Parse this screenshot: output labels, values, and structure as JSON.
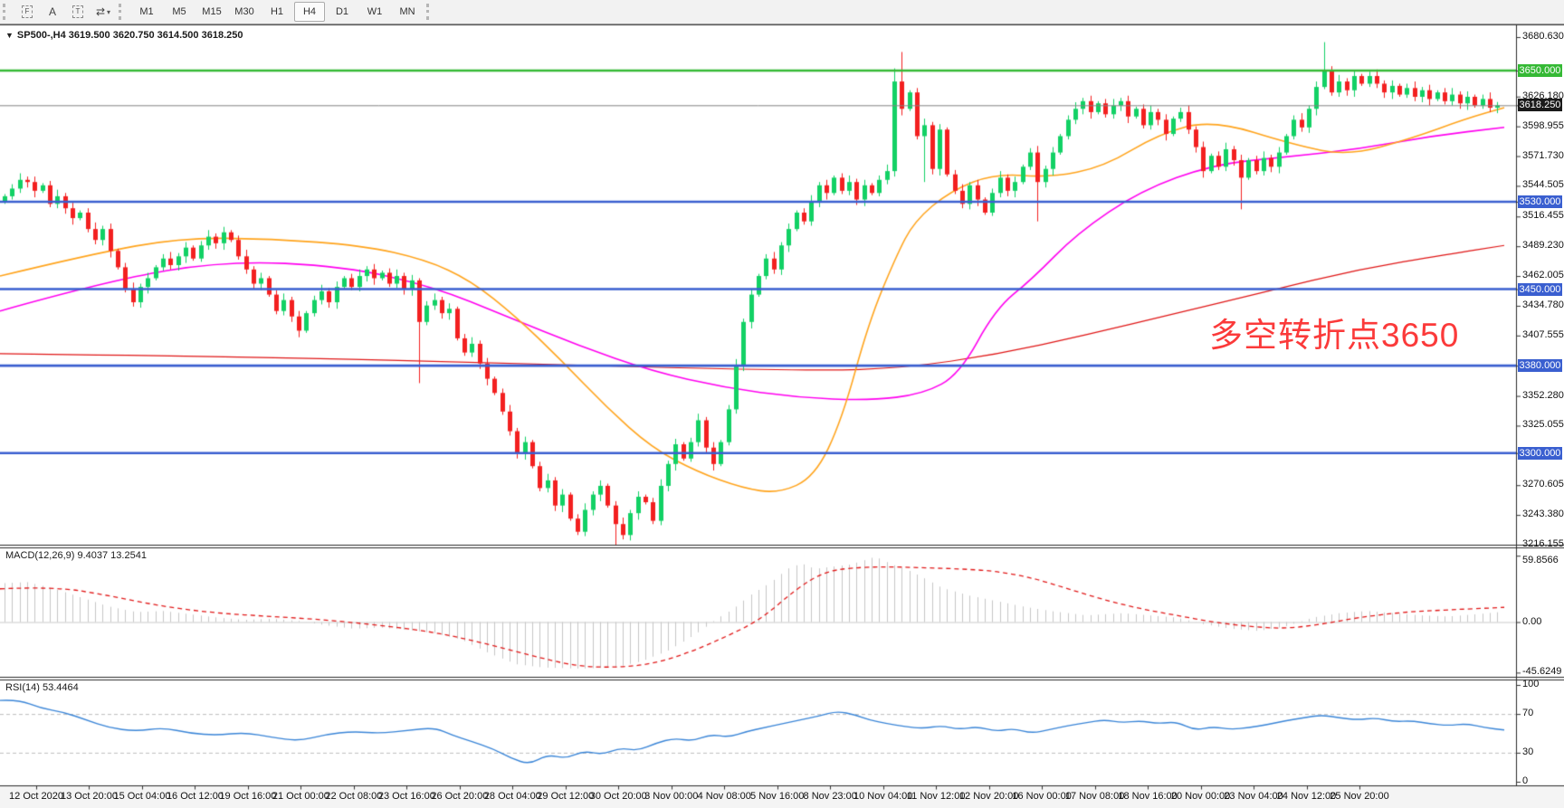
{
  "toolbar": {
    "icons": [
      {
        "name": "selection-box-f-icon",
        "glyph": "F"
      },
      {
        "name": "text-label-icon",
        "glyph": "A"
      },
      {
        "name": "text-box-icon",
        "glyph": "T"
      },
      {
        "name": "arrows-dropdown-icon",
        "glyph": "⇄",
        "caret": "▾"
      }
    ],
    "timeframes": [
      "M1",
      "M5",
      "M15",
      "M30",
      "H1",
      "H4",
      "D1",
      "W1",
      "MN"
    ],
    "active_timeframe": "H4"
  },
  "chart_header": {
    "collapse_icon": "▼",
    "title": "SP500-,H4  3619.500 3620.750 3614.500 3618.250"
  },
  "annotation": {
    "text": "多空转折点3650",
    "color": "#fb3a3a"
  },
  "price_axis": {
    "ticks": [
      "3680.630",
      "3626.180",
      "3598.955",
      "3571.730",
      "3544.505",
      "3516.455",
      "3489.230",
      "3462.005",
      "3434.780",
      "3407.555",
      "3352.280",
      "3325.055",
      "3270.605",
      "3243.380",
      "3216.155"
    ],
    "tick_values": [
      3680.63,
      3626.18,
      3598.955,
      3571.73,
      3544.505,
      3516.455,
      3489.23,
      3462.005,
      3434.78,
      3407.555,
      3352.28,
      3325.055,
      3270.605,
      3243.38,
      3216.155
    ],
    "tags": [
      {
        "text": "3650.000",
        "price": 3650.0,
        "bg": "#35b935"
      },
      {
        "text": "3618.250",
        "price": 3618.25,
        "bg": "#1a1a1a"
      },
      {
        "text": "3530.000",
        "price": 3530.0,
        "bg": "#3a5fd0"
      },
      {
        "text": "3450.000",
        "price": 3450.0,
        "bg": "#3a5fd0"
      },
      {
        "text": "3380.000",
        "price": 3380.0,
        "bg": "#3a5fd0"
      },
      {
        "text": "3300.000",
        "price": 3300.0,
        "bg": "#3a5fd0"
      }
    ]
  },
  "time_axis": {
    "labels": [
      "12 Oct 2020",
      "13 Oct 20:00",
      "15 Oct 04:00",
      "16 Oct 12:00",
      "19 Oct 16:00",
      "21 Oct 00:00",
      "22 Oct 08:00",
      "23 Oct 16:00",
      "26 Oct 20:00",
      "28 Oct 04:00",
      "29 Oct 12:00",
      "30 Oct 20:00",
      "3 Nov 00:00",
      "4 Nov 08:00",
      "5 Nov 16:00",
      "8 Nov 23:00",
      "10 Nov 04:00",
      "11 Nov 12:00",
      "12 Nov 20:00",
      "16 Nov 00:00",
      "17 Nov 08:00",
      "18 Nov 16:00",
      "20 Nov 00:00",
      "23 Nov 04:00",
      "24 Nov 12:00",
      "25 Nov 20:00"
    ]
  },
  "indicators": {
    "macd": {
      "label": "MACD(12,26,9) 9.4037 13.2541",
      "axis": [
        {
          "text": "59.8566",
          "v": 59.8566
        },
        {
          "text": "0.00",
          "v": 0
        },
        {
          "text": "-45.6249",
          "v": -45.6249
        }
      ]
    },
    "rsi": {
      "label": "RSI(14) 53.4464",
      "axis": [
        {
          "text": "100",
          "v": 100
        },
        {
          "text": "70",
          "v": 70
        },
        {
          "text": "30",
          "v": 30
        },
        {
          "text": "0",
          "v": 0
        }
      ]
    }
  },
  "chart_data": {
    "type": "candlestick",
    "symbol": "SP500-",
    "timeframe": "H4",
    "ohlc_header": {
      "open": 3619.5,
      "high": 3620.75,
      "low": 3614.5,
      "close": 3618.25
    },
    "h_lines": [
      {
        "price": 3650,
        "color": "#35b935",
        "width": 2.6
      },
      {
        "price": 3530,
        "color": "#3a5fd0",
        "width": 2.6
      },
      {
        "price": 3450,
        "color": "#3a5fd0",
        "width": 2.6
      },
      {
        "price": 3380,
        "color": "#3a5fd0",
        "width": 2.6
      },
      {
        "price": 3300,
        "color": "#3a5fd0",
        "width": 2.6
      }
    ],
    "current_price": 3618.25,
    "candles": {
      "first_open": 3530,
      "up_color": "#12d165",
      "down_color": "#f32020",
      "closes": [
        3535,
        3542,
        3550,
        3548,
        3540,
        3545,
        3528,
        3535,
        3524,
        3515,
        3520,
        3505,
        3495,
        3505,
        3485,
        3470,
        3450,
        3438,
        3452,
        3460,
        3470,
        3478,
        3472,
        3480,
        3488,
        3478,
        3490,
        3498,
        3492,
        3502,
        3495,
        3480,
        3468,
        3455,
        3460,
        3445,
        3430,
        3440,
        3425,
        3412,
        3428,
        3440,
        3448,
        3438,
        3452,
        3460,
        3452,
        3462,
        3468,
        3460,
        3465,
        3455,
        3462,
        3450,
        3458,
        3420,
        3435,
        3440,
        3428,
        3432,
        3405,
        3392,
        3400,
        3382,
        3368,
        3355,
        3338,
        3320,
        3300,
        3310,
        3288,
        3268,
        3275,
        3252,
        3262,
        3240,
        3228,
        3248,
        3262,
        3270,
        3252,
        3235,
        3225,
        3245,
        3260,
        3255,
        3238,
        3270,
        3290,
        3308,
        3295,
        3310,
        3330,
        3305,
        3290,
        3310,
        3340,
        3380,
        3420,
        3445,
        3462,
        3478,
        3468,
        3490,
        3505,
        3520,
        3512,
        3530,
        3545,
        3538,
        3552,
        3540,
        3548,
        3532,
        3545,
        3538,
        3550,
        3558,
        3640,
        3615,
        3630,
        3590,
        3600,
        3560,
        3596,
        3555,
        3540,
        3528,
        3545,
        3532,
        3520,
        3538,
        3552,
        3540,
        3548,
        3562,
        3575,
        3548,
        3560,
        3575,
        3590,
        3605,
        3615,
        3622,
        3612,
        3620,
        3610,
        3618,
        3622,
        3608,
        3615,
        3600,
        3612,
        3605,
        3592,
        3606,
        3612,
        3596,
        3580,
        3558,
        3572,
        3562,
        3578,
        3568,
        3552,
        3568,
        3558,
        3570,
        3562,
        3575,
        3590,
        3605,
        3598,
        3615,
        3635,
        3650,
        3630,
        3640,
        3632,
        3645,
        3638,
        3645,
        3638,
        3630,
        3636,
        3628,
        3634,
        3626,
        3632,
        3624,
        3630,
        3622,
        3628,
        3620,
        3626,
        3618,
        3624,
        3616,
        3618.25
      ],
      "wick_overrides": {
        "55": {
          "low": 3364
        },
        "81": {
          "low": 3216
        },
        "118": {
          "high": 3652
        },
        "119": {
          "high": 3667
        },
        "122": {
          "low": 3548
        },
        "137": {
          "low": 3512
        },
        "164": {
          "low": 3523
        },
        "175": {
          "high": 3676
        }
      }
    },
    "ma_fast_orange": {
      "color": "#ffa41c",
      "points": [
        [
          0,
          3462
        ],
        [
          100,
          3482
        ],
        [
          200,
          3497
        ],
        [
          300,
          3496
        ],
        [
          400,
          3490
        ],
        [
          470,
          3477
        ],
        [
          520,
          3458
        ],
        [
          570,
          3425
        ],
        [
          620,
          3385
        ],
        [
          670,
          3342
        ],
        [
          720,
          3305
        ],
        [
          770,
          3283
        ],
        [
          820,
          3268
        ],
        [
          860,
          3263
        ],
        [
          900,
          3278
        ],
        [
          930,
          3330
        ],
        [
          960,
          3420
        ],
        [
          990,
          3480
        ],
        [
          1010,
          3512
        ],
        [
          1050,
          3540
        ],
        [
          1100,
          3556
        ],
        [
          1160,
          3552
        ],
        [
          1220,
          3562
        ],
        [
          1280,
          3592
        ],
        [
          1340,
          3605
        ],
        [
          1430,
          3582
        ],
        [
          1490,
          3572
        ],
        [
          1560,
          3588
        ],
        [
          1620,
          3606
        ],
        [
          1662,
          3616
        ]
      ]
    },
    "ma_slow_magenta": {
      "color": "#ff00f0",
      "points": [
        [
          0,
          3430
        ],
        [
          120,
          3458
        ],
        [
          250,
          3476
        ],
        [
          380,
          3471
        ],
        [
          480,
          3452
        ],
        [
          560,
          3425
        ],
        [
          640,
          3398
        ],
        [
          720,
          3375
        ],
        [
          800,
          3360
        ],
        [
          880,
          3351
        ],
        [
          960,
          3348
        ],
        [
          1020,
          3354
        ],
        [
          1060,
          3372
        ],
        [
          1100,
          3432
        ],
        [
          1140,
          3459
        ],
        [
          1190,
          3501
        ],
        [
          1260,
          3540
        ],
        [
          1340,
          3564
        ],
        [
          1420,
          3571
        ],
        [
          1500,
          3578
        ],
        [
          1580,
          3590
        ],
        [
          1662,
          3598
        ]
      ]
    },
    "ma_long_red": {
      "color": "#e01717",
      "points": [
        [
          0,
          3391
        ],
        [
          300,
          3388
        ],
        [
          600,
          3381
        ],
        [
          900,
          3375
        ],
        [
          1000,
          3378
        ],
        [
          1100,
          3390
        ],
        [
          1200,
          3408
        ],
        [
          1300,
          3428
        ],
        [
          1400,
          3448
        ],
        [
          1500,
          3468
        ],
        [
          1600,
          3482
        ],
        [
          1662,
          3490
        ]
      ]
    },
    "macd": {
      "hist_color": "#c6c6c6",
      "signal_color": "#e21b1b",
      "range": [
        59.8566,
        -45.6249
      ],
      "last_macd": 9.4037,
      "last_signal": 13.2541,
      "hist": [
        [
          0,
          35
        ],
        [
          30,
          36
        ],
        [
          60,
          30
        ],
        [
          90,
          22
        ],
        [
          120,
          14
        ],
        [
          150,
          9
        ],
        [
          180,
          10
        ],
        [
          210,
          7
        ],
        [
          240,
          4
        ],
        [
          270,
          2
        ],
        [
          300,
          3
        ],
        [
          330,
          1
        ],
        [
          360,
          -3
        ],
        [
          390,
          -6
        ],
        [
          420,
          -5
        ],
        [
          450,
          -7
        ],
        [
          480,
          -10
        ],
        [
          510,
          -16
        ],
        [
          540,
          -28
        ],
        [
          570,
          -38
        ],
        [
          600,
          -41
        ],
        [
          640,
          -42
        ],
        [
          680,
          -41
        ],
        [
          710,
          -35
        ],
        [
          740,
          -25
        ],
        [
          770,
          -10
        ],
        [
          790,
          2
        ],
        [
          810,
          12
        ],
        [
          830,
          25
        ],
        [
          850,
          35
        ],
        [
          870,
          48
        ],
        [
          885,
          53
        ],
        [
          900,
          48
        ],
        [
          920,
          50
        ],
        [
          940,
          52
        ],
        [
          967,
          59
        ],
        [
          985,
          52
        ],
        [
          1000,
          48
        ],
        [
          1020,
          40
        ],
        [
          1040,
          31
        ],
        [
          1070,
          24
        ],
        [
          1100,
          19
        ],
        [
          1130,
          14
        ],
        [
          1160,
          10
        ],
        [
          1200,
          6
        ],
        [
          1240,
          8
        ],
        [
          1270,
          6
        ],
        [
          1300,
          4
        ],
        [
          1330,
          -2
        ],
        [
          1360,
          -6
        ],
        [
          1390,
          -8
        ],
        [
          1420,
          -4
        ],
        [
          1450,
          4
        ],
        [
          1480,
          8
        ],
        [
          1510,
          10
        ],
        [
          1540,
          8
        ],
        [
          1570,
          6
        ],
        [
          1600,
          5
        ],
        [
          1630,
          7
        ],
        [
          1662,
          9.4
        ]
      ],
      "signal": [
        [
          0,
          30
        ],
        [
          60,
          32
        ],
        [
          120,
          24
        ],
        [
          180,
          14
        ],
        [
          240,
          8
        ],
        [
          300,
          5
        ],
        [
          360,
          2
        ],
        [
          420,
          -3
        ],
        [
          480,
          -9
        ],
        [
          540,
          -20
        ],
        [
          600,
          -33
        ],
        [
          640,
          -40
        ],
        [
          680,
          -41
        ],
        [
          720,
          -38
        ],
        [
          760,
          -28
        ],
        [
          800,
          -14
        ],
        [
          840,
          2
        ],
        [
          880,
          30
        ],
        [
          910,
          45
        ],
        [
          940,
          49
        ],
        [
          980,
          50
        ],
        [
          1020,
          49
        ],
        [
          1060,
          48
        ],
        [
          1100,
          46
        ],
        [
          1140,
          40
        ],
        [
          1180,
          30
        ],
        [
          1220,
          20
        ],
        [
          1260,
          12
        ],
        [
          1300,
          6
        ],
        [
          1340,
          0
        ],
        [
          1380,
          -4
        ],
        [
          1420,
          -6
        ],
        [
          1460,
          -2
        ],
        [
          1500,
          4
        ],
        [
          1550,
          9
        ],
        [
          1600,
          11
        ],
        [
          1662,
          13.25
        ]
      ]
    },
    "rsi": {
      "color": "#3b86d8",
      "levels": [
        70,
        30
      ],
      "last": 53.4464,
      "line": [
        [
          0,
          84
        ],
        [
          20,
          85
        ],
        [
          45,
          76
        ],
        [
          70,
          72
        ],
        [
          95,
          64
        ],
        [
          120,
          56
        ],
        [
          150,
          52
        ],
        [
          180,
          56
        ],
        [
          210,
          50
        ],
        [
          240,
          48
        ],
        [
          270,
          51
        ],
        [
          300,
          46
        ],
        [
          330,
          42
        ],
        [
          360,
          49
        ],
        [
          390,
          52
        ],
        [
          420,
          50
        ],
        [
          450,
          53
        ],
        [
          480,
          56
        ],
        [
          500,
          48
        ],
        [
          520,
          42
        ],
        [
          545,
          34
        ],
        [
          565,
          24
        ],
        [
          585,
          18
        ],
        [
          605,
          28
        ],
        [
          625,
          24
        ],
        [
          645,
          32
        ],
        [
          665,
          28
        ],
        [
          685,
          35
        ],
        [
          705,
          32
        ],
        [
          725,
          40
        ],
        [
          745,
          45
        ],
        [
          765,
          42
        ],
        [
          785,
          49
        ],
        [
          805,
          46
        ],
        [
          825,
          52
        ],
        [
          845,
          56
        ],
        [
          865,
          60
        ],
        [
          885,
          64
        ],
        [
          905,
          68
        ],
        [
          925,
          73
        ],
        [
          945,
          69
        ],
        [
          960,
          64
        ],
        [
          980,
          60
        ],
        [
          1000,
          57
        ],
        [
          1020,
          55
        ],
        [
          1040,
          58
        ],
        [
          1060,
          54
        ],
        [
          1080,
          57
        ],
        [
          1100,
          52
        ],
        [
          1120,
          55
        ],
        [
          1140,
          50
        ],
        [
          1160,
          54
        ],
        [
          1180,
          58
        ],
        [
          1200,
          61
        ],
        [
          1220,
          64
        ],
        [
          1240,
          61
        ],
        [
          1260,
          63
        ],
        [
          1280,
          60
        ],
        [
          1300,
          62
        ],
        [
          1320,
          53
        ],
        [
          1340,
          57
        ],
        [
          1360,
          54
        ],
        [
          1380,
          56
        ],
        [
          1400,
          59
        ],
        [
          1420,
          63
        ],
        [
          1440,
          66
        ],
        [
          1460,
          69
        ],
        [
          1480,
          66
        ],
        [
          1500,
          64
        ],
        [
          1520,
          66
        ],
        [
          1540,
          62
        ],
        [
          1560,
          63
        ],
        [
          1580,
          60
        ],
        [
          1600,
          58
        ],
        [
          1620,
          60
        ],
        [
          1640,
          56
        ],
        [
          1662,
          53.45
        ]
      ]
    }
  }
}
